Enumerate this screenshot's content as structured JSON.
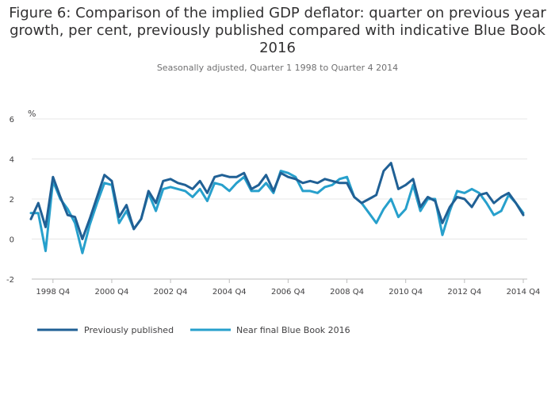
{
  "chart_data": {
    "type": "line",
    "title": "Figure 6: Comparison of the implied GDP deflator: quarter on previous year growth, per cent, previously published compared with indicative Blue Book 2016",
    "title_lines": [
      "Figure 6: Comparison of the implied GDP deflator: quarter on previous year",
      "growth, per cent, previously published compared with indicative Blue Book",
      "2016"
    ],
    "subtitle": "Seasonally adjusted, Quarter 1 1998 to Quarter 4 2014",
    "ylabel": "%",
    "ylim": [
      -2,
      6
    ],
    "yticks": [
      -2,
      0,
      2,
      4,
      6
    ],
    "grid": true,
    "legend_position": "bottom-left",
    "xtick_labels": [
      "1998 Q4",
      "2000 Q4",
      "2002 Q4",
      "2004 Q4",
      "2006 Q4",
      "2008 Q4",
      "2010 Q4",
      "2012 Q4",
      "2014 Q4"
    ],
    "xtick_indices": [
      3,
      11,
      19,
      27,
      35,
      43,
      51,
      59,
      67
    ],
    "series": [
      {
        "name": "Previously published",
        "color": "#206095",
        "values": [
          1.0,
          1.8,
          0.6,
          3.1,
          2.1,
          1.2,
          1.1,
          0.0,
          1.0,
          2.1,
          3.2,
          2.9,
          1.1,
          1.7,
          0.5,
          1.0,
          2.4,
          1.8,
          2.9,
          3.0,
          2.8,
          2.7,
          2.5,
          2.9,
          2.3,
          3.1,
          3.2,
          3.1,
          3.1,
          3.3,
          2.5,
          2.7,
          3.2,
          2.4,
          3.3,
          3.1,
          3.0,
          2.8,
          2.9,
          2.8,
          3.0,
          2.9,
          2.8,
          2.8,
          2.1,
          1.8,
          2.0,
          2.2,
          3.4,
          3.8,
          2.5,
          2.7,
          3.0,
          1.6,
          2.1,
          1.9,
          0.8,
          1.6,
          2.1,
          2.0,
          1.6,
          2.2,
          2.3,
          1.8,
          2.1,
          2.3,
          1.8,
          1.2
        ]
      },
      {
        "name": "Near final Blue Book 2016",
        "color": "#27A0CC",
        "values": [
          1.3,
          1.3,
          -0.6,
          2.9,
          2.0,
          1.5,
          0.8,
          -0.7,
          0.7,
          1.8,
          2.8,
          2.7,
          0.8,
          1.4,
          0.5,
          1.0,
          2.3,
          1.4,
          2.5,
          2.6,
          2.5,
          2.4,
          2.1,
          2.5,
          1.9,
          2.8,
          2.7,
          2.4,
          2.8,
          3.1,
          2.4,
          2.4,
          2.8,
          2.3,
          3.4,
          3.3,
          3.1,
          2.4,
          2.4,
          2.3,
          2.6,
          2.7,
          3.0,
          3.1,
          2.1,
          1.8,
          1.3,
          0.8,
          1.5,
          2.0,
          1.1,
          1.5,
          2.7,
          1.4,
          2.0,
          2.0,
          0.2,
          1.4,
          2.4,
          2.3,
          2.5,
          2.3,
          1.8,
          1.2,
          1.4,
          2.2,
          1.8,
          1.3
        ]
      }
    ]
  }
}
